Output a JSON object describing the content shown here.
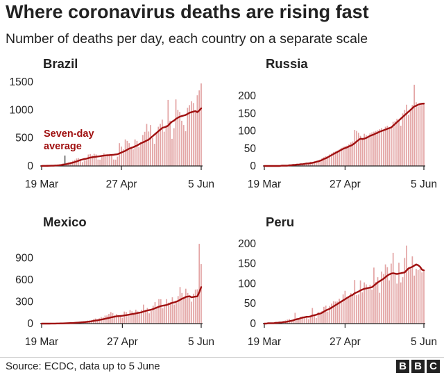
{
  "title": "Where coronavirus deaths are rising fast",
  "subtitle": "Number of deaths per day, each country on a separate scale",
  "source": "Source: ECDC, data up to 5 June",
  "logo": [
    "B",
    "B",
    "C"
  ],
  "colors": {
    "bar": "#e3a5a5",
    "line": "#a01010",
    "text": "#222222"
  },
  "chart_data": [
    {
      "type": "bar",
      "title": "Brazil",
      "x_ticks": [
        "19 Mar",
        "27 Apr",
        "5 Jun"
      ],
      "y_ticks": [
        0,
        500,
        1000,
        1500
      ],
      "ylim": [
        0,
        1500
      ],
      "series_bar": "Number of deaths per day",
      "series_line": "Seven-day average",
      "annotation": [
        "Seven-day",
        "average"
      ],
      "daily": [
        1,
        2,
        2,
        3,
        6,
        7,
        10,
        11,
        16,
        22,
        34,
        46,
        57,
        60,
        66,
        73,
        92,
        111,
        133,
        141,
        115,
        68,
        99,
        105,
        204,
        213,
        188,
        217,
        206,
        115,
        113,
        166,
        225,
        204,
        188,
        217,
        206,
        115,
        113,
        166,
        407,
        346,
        296,
        474,
        448,
        407,
        346,
        296,
        474,
        448,
        338,
        428,
        553,
        610,
        751,
        615,
        730,
        496,
        396,
        600,
        700,
        752,
        827,
        612,
        728,
        1179,
        808,
        485,
        674,
        1188,
        1002,
        965,
        807,
        730,
        620,
        1039,
        1086,
        1156,
        1124,
        956,
        1262,
        1349,
        1473
      ],
      "average": [
        1,
        2,
        2,
        3,
        4,
        5,
        6,
        8,
        10,
        13,
        17,
        22,
        28,
        35,
        43,
        51,
        60,
        70,
        81,
        95,
        107,
        116,
        125,
        130,
        140,
        150,
        155,
        160,
        165,
        170,
        175,
        180,
        185,
        190,
        192,
        194,
        197,
        200,
        205,
        210,
        225,
        240,
        255,
        270,
        290,
        310,
        320,
        335,
        350,
        365,
        385,
        405,
        420,
        435,
        455,
        470,
        500,
        530,
        560,
        590,
        620,
        650,
        680,
        690,
        700,
        720,
        760,
        790,
        810,
        840,
        860,
        880,
        890,
        900,
        910,
        930,
        950,
        960,
        970,
        980,
        960,
        990,
        1030
      ]
    },
    {
      "type": "bar",
      "title": "Russia",
      "x_ticks": [
        "19 Mar",
        "27 Apr",
        "5 Jun"
      ],
      "y_ticks": [
        0,
        50,
        100,
        150,
        200
      ],
      "ylim": [
        0,
        240
      ],
      "series_bar": "Number of deaths per day",
      "series_line": "Seven-day average",
      "daily": [
        0,
        0,
        0,
        0,
        0,
        0,
        1,
        0,
        1,
        1,
        1,
        1,
        2,
        3,
        4,
        3,
        4,
        6,
        5,
        7,
        6,
        8,
        9,
        10,
        12,
        11,
        14,
        13,
        16,
        18,
        22,
        25,
        28,
        27,
        33,
        36,
        40,
        42,
        44,
        47,
        52,
        55,
        57,
        58,
        62,
        67,
        70,
        103,
        100,
        95,
        86,
        80,
        92,
        88,
        81,
        93,
        96,
        98,
        100,
        102,
        105,
        108,
        103,
        112,
        115,
        106,
        108,
        126,
        128,
        135,
        129,
        115,
        150,
        160,
        175,
        146,
        160,
        174,
        232,
        182,
        170,
        178,
        177,
        181
      ],
      "average": [
        0,
        0,
        0,
        0,
        0,
        0,
        0,
        0,
        0,
        1,
        1,
        1,
        1,
        2,
        2,
        3,
        3,
        4,
        4,
        5,
        5,
        6,
        7,
        7,
        8,
        9,
        10,
        12,
        13,
        15,
        17,
        20,
        22,
        25,
        28,
        31,
        34,
        37,
        40,
        43,
        46,
        49,
        51,
        53,
        56,
        58,
        61,
        65,
        70,
        74,
        78,
        77,
        78,
        80,
        83,
        86,
        88,
        90,
        93,
        95,
        98,
        100,
        102,
        104,
        106,
        108,
        110,
        115,
        120,
        125,
        130,
        135,
        140,
        145,
        150,
        155,
        160,
        165,
        170,
        172,
        175,
        177,
        178,
        178
      ]
    },
    {
      "type": "bar",
      "title": "Mexico",
      "x_ticks": [
        "19 Mar",
        "27 Apr",
        "5 Jun"
      ],
      "y_ticks": [
        0,
        300,
        600,
        900
      ],
      "ylim": [
        0,
        1150
      ],
      "series_bar": "Number of deaths per day",
      "series_line": "Seven-day average",
      "daily": [
        0,
        0,
        0,
        0,
        1,
        1,
        2,
        2,
        3,
        4,
        5,
        6,
        8,
        8,
        10,
        12,
        15,
        18,
        20,
        25,
        30,
        32,
        35,
        38,
        42,
        45,
        50,
        60,
        70,
        54,
        72,
        90,
        88,
        110,
        112,
        133,
        158,
        145,
        115,
        130,
        103,
        95,
        80,
        165,
        160,
        115,
        185,
        168,
        130,
        191,
        167,
        138,
        190,
        260,
        190,
        215,
        140,
        170,
        245,
        294,
        235,
        335,
        333,
        209,
        257,
        335,
        287,
        295,
        360,
        260,
        308,
        377,
        501,
        420,
        352,
        478,
        420,
        380,
        300,
        410,
        466,
        470,
        1092,
        816
      ],
      "average": [
        0,
        0,
        0,
        0,
        0,
        1,
        1,
        1,
        2,
        2,
        3,
        3,
        4,
        5,
        6,
        7,
        8,
        10,
        12,
        14,
        16,
        18,
        20,
        22,
        25,
        28,
        32,
        37,
        42,
        46,
        50,
        55,
        60,
        66,
        72,
        78,
        85,
        90,
        95,
        100,
        103,
        105,
        108,
        112,
        116,
        120,
        125,
        130,
        135,
        140,
        145,
        150,
        155,
        165,
        172,
        180,
        185,
        190,
        200,
        210,
        220,
        230,
        240,
        245,
        250,
        255,
        265,
        275,
        285,
        290,
        300,
        310,
        325,
        340,
        350,
        365,
        370,
        375,
        360,
        365,
        370,
        372,
        430,
        500
      ]
    },
    {
      "type": "bar",
      "title": "Peru",
      "x_ticks": [
        "19 Mar",
        "27 Apr",
        "5 Jun"
      ],
      "y_ticks": [
        0,
        50,
        100,
        150,
        200
      ],
      "ylim": [
        0,
        210
      ],
      "series_bar": "Number of deaths per day",
      "series_line": "Seven-day average",
      "daily": [
        0,
        1,
        1,
        1,
        2,
        2,
        3,
        3,
        4,
        5,
        5,
        8,
        10,
        12,
        7,
        11,
        27,
        14,
        13,
        17,
        18,
        16,
        17,
        11,
        19,
        39,
        23,
        14,
        29,
        24,
        31,
        42,
        45,
        30,
        44,
        50,
        56,
        55,
        55,
        62,
        54,
        73,
        82,
        67,
        65,
        76,
        72,
        109,
        71,
        73,
        108,
        78,
        103,
        98,
        88,
        97,
        85,
        140,
        104,
        116,
        77,
        130,
        124,
        148,
        141,
        108,
        150,
        177,
        126,
        100,
        152,
        103,
        116,
        164,
        195,
        138,
        141,
        168,
        120,
        137,
        134,
        137,
        128,
        130
      ],
      "average": [
        0,
        0,
        1,
        1,
        1,
        1,
        2,
        2,
        3,
        3,
        4,
        4,
        5,
        6,
        7,
        8,
        10,
        11,
        12,
        14,
        15,
        16,
        17,
        17,
        18,
        20,
        21,
        22,
        24,
        25,
        27,
        30,
        33,
        35,
        37,
        40,
        43,
        46,
        49,
        52,
        55,
        58,
        61,
        64,
        67,
        70,
        72,
        76,
        78,
        80,
        83,
        85,
        87,
        88,
        89,
        90,
        91,
        95,
        99,
        103,
        106,
        109,
        112,
        116,
        120,
        123,
        125,
        126,
        125,
        124,
        125,
        126,
        127,
        128,
        133,
        138,
        140,
        142,
        145,
        148,
        146,
        142,
        135,
        133
      ]
    }
  ]
}
